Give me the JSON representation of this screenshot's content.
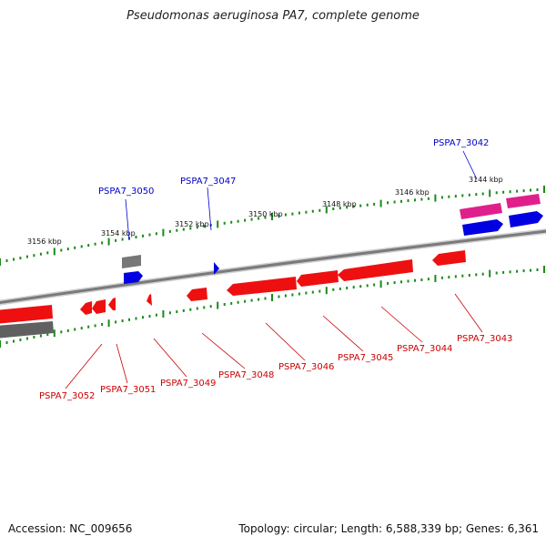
{
  "title": "Pseudomonas aeruginosa PA7, complete genome",
  "footer": {
    "accession": "Accession: NC_009656",
    "topology": "Topology: circular; Length: 6,588,339 bp; Genes: 6,361"
  },
  "colors": {
    "backbone": "#808080",
    "feature_red": "#ff0000",
    "feature_blue": "#0000e0",
    "feature_pink": "#e0208a",
    "feature_gray": "#707070",
    "tick_green": "#1a8a1a",
    "label_red": "#cc0000",
    "label_blue": "#0000cc"
  },
  "scale_labels": [
    "3156 kbp",
    "3154 kbp",
    "3152 kbp",
    "3150 kbp",
    "3148 kbp",
    "3146 kbp",
    "3144 kbp"
  ],
  "gene_labels": {
    "top": [
      "PSPA7_3050",
      "PSPA7_3047",
      "PSPA7_3042"
    ],
    "bottom": [
      "PSPA7_3052",
      "PSPA7_3051",
      "PSPA7_3049",
      "PSPA7_3048",
      "PSPA7_3046",
      "PSPA7_3045",
      "PSPA7_3044",
      "PSPA7_3043"
    ]
  }
}
